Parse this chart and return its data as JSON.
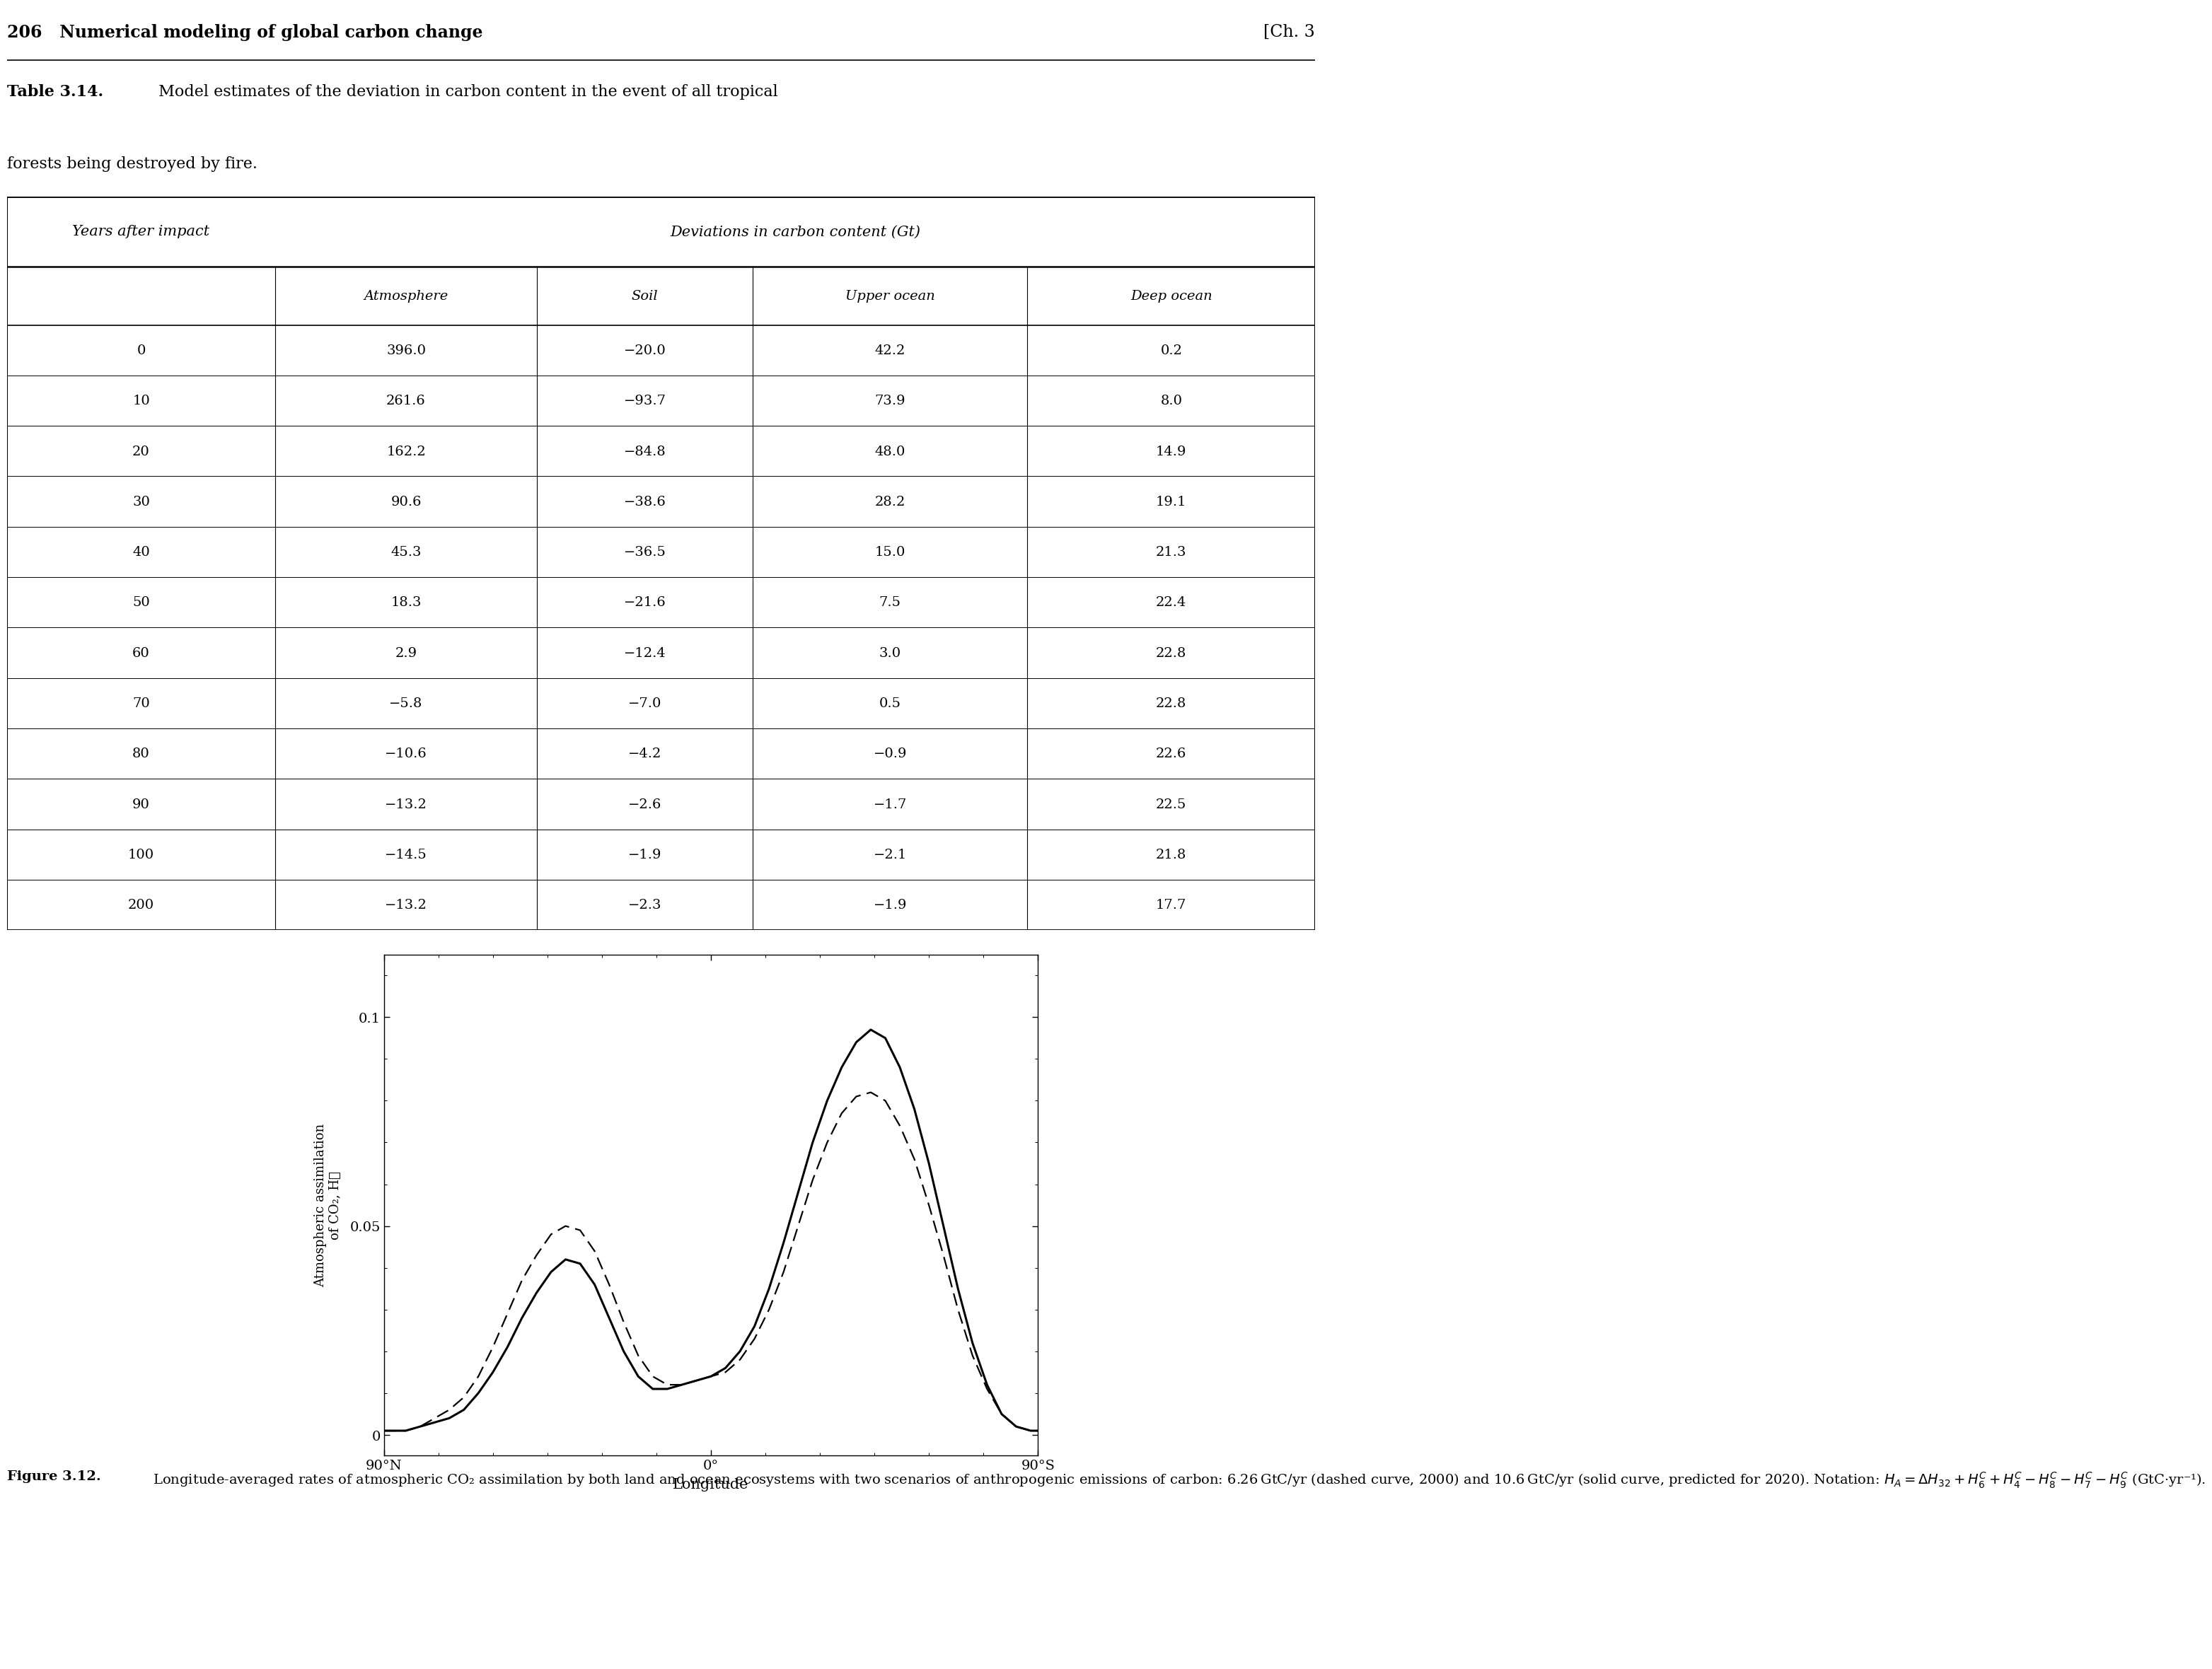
{
  "page_header_left": "206   Numerical modeling of global carbon change",
  "page_header_right": "[Ch. 3",
  "table_title_bold": "Table 3.14.",
  "table_title_normal": " Model estimates of the deviation in carbon content in the event of all tropical",
  "table_title_line2": "forests being destroyed by fire.",
  "table_col_header1": "Years after impact",
  "table_col_header2": "Deviations in carbon content (Gt)",
  "table_col_headers_sub": [
    "Atmosphere",
    "Soil",
    "Upper ocean",
    "Deep ocean"
  ],
  "table_data": [
    [
      0,
      396.0,
      -20.0,
      42.2,
      0.2
    ],
    [
      10,
      261.6,
      -93.7,
      73.9,
      8.0
    ],
    [
      20,
      162.2,
      -84.8,
      48.0,
      14.9
    ],
    [
      30,
      90.6,
      -38.6,
      28.2,
      19.1
    ],
    [
      40,
      45.3,
      -36.5,
      15.0,
      21.3
    ],
    [
      50,
      18.3,
      -21.6,
      7.5,
      22.4
    ],
    [
      60,
      2.9,
      -12.4,
      3.0,
      22.8
    ],
    [
      70,
      -5.8,
      -7.0,
      0.5,
      22.8
    ],
    [
      80,
      -10.6,
      -4.2,
      -0.9,
      22.6
    ],
    [
      90,
      -13.2,
      -2.6,
      -1.7,
      22.5
    ],
    [
      100,
      -14.5,
      -1.9,
      -2.1,
      21.8
    ],
    [
      200,
      -13.2,
      -2.3,
      -1.9,
      17.7
    ]
  ],
  "xlabel": "Longitude",
  "ylabel_line1": "Atmospheric assimilation",
  "ylabel_line2": "of CO₂, H⁁",
  "yticks": [
    0,
    0.05,
    0.1
  ],
  "ytick_labels": [
    "0",
    "0.05",
    "0.1"
  ],
  "xtick_labels": [
    "90°N",
    "0°",
    "90°S"
  ],
  "ylim": [
    -0.005,
    0.115
  ],
  "xlim": [
    -90,
    90
  ],
  "solid_x": [
    -90,
    -87,
    -84,
    -80,
    -76,
    -72,
    -68,
    -64,
    -60,
    -56,
    -52,
    -48,
    -44,
    -40,
    -36,
    -32,
    -28,
    -24,
    -20,
    -16,
    -12,
    -8,
    -4,
    0,
    4,
    8,
    12,
    16,
    20,
    24,
    28,
    32,
    36,
    40,
    44,
    48,
    52,
    56,
    60,
    64,
    68,
    72,
    76,
    80,
    84,
    88,
    90
  ],
  "solid_y": [
    0.001,
    0.001,
    0.001,
    0.002,
    0.003,
    0.004,
    0.006,
    0.01,
    0.015,
    0.021,
    0.028,
    0.034,
    0.039,
    0.042,
    0.041,
    0.036,
    0.028,
    0.02,
    0.014,
    0.011,
    0.011,
    0.012,
    0.013,
    0.014,
    0.016,
    0.02,
    0.026,
    0.035,
    0.046,
    0.058,
    0.07,
    0.08,
    0.088,
    0.094,
    0.097,
    0.095,
    0.088,
    0.078,
    0.065,
    0.05,
    0.035,
    0.022,
    0.012,
    0.005,
    0.002,
    0.001,
    0.001
  ],
  "dashed_x": [
    -90,
    -87,
    -84,
    -80,
    -76,
    -72,
    -68,
    -64,
    -60,
    -56,
    -52,
    -48,
    -44,
    -40,
    -36,
    -32,
    -28,
    -24,
    -20,
    -16,
    -12,
    -8,
    -4,
    0,
    4,
    8,
    12,
    16,
    20,
    24,
    28,
    32,
    36,
    40,
    44,
    48,
    52,
    56,
    60,
    64,
    68,
    72,
    76,
    80,
    84,
    88,
    90
  ],
  "dashed_y": [
    0.001,
    0.001,
    0.001,
    0.002,
    0.004,
    0.006,
    0.009,
    0.014,
    0.021,
    0.029,
    0.037,
    0.043,
    0.048,
    0.05,
    0.049,
    0.044,
    0.036,
    0.027,
    0.019,
    0.014,
    0.012,
    0.012,
    0.013,
    0.014,
    0.015,
    0.018,
    0.023,
    0.03,
    0.039,
    0.05,
    0.061,
    0.07,
    0.077,
    0.081,
    0.082,
    0.08,
    0.074,
    0.066,
    0.055,
    0.043,
    0.03,
    0.019,
    0.011,
    0.005,
    0.002,
    0.001,
    0.001
  ],
  "fig_cap_bold": "Figure 3.12.",
  "fig_cap_text": " Longitude-averaged rates of atmospheric CO₂ assimilation by both land and ocean ecosystems with two scenarios of anthropogenic emissions of carbon: 6.26 GtC/yr (dashed curve, 2000) and 10.6 GtC/yr (solid curve, predicted for 2020). Notation: $H_A = \\Delta H_{32} + H_6^C + H_4^C - H_8^C - H_7^C - H_9^C$ (GtC·yr⁻¹)."
}
